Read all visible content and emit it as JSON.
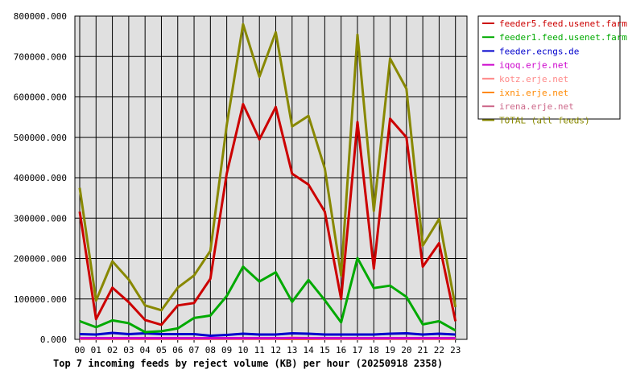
{
  "chart_data": {
    "type": "line",
    "title": "Top 7 incoming feeds by reject volume (KB) per hour (20250918 2358)",
    "categories": [
      "00",
      "01",
      "02",
      "03",
      "04",
      "05",
      "06",
      "07",
      "08",
      "09",
      "10",
      "11",
      "12",
      "13",
      "14",
      "15",
      "16",
      "17",
      "18",
      "19",
      "20",
      "21",
      "22",
      "23"
    ],
    "yticks": [
      "0.000",
      "100000.000",
      "200000.000",
      "300000.000",
      "400000.000",
      "500000.000",
      "600000.000",
      "700000.000",
      "800000.000"
    ],
    "ylim": [
      0,
      800000
    ],
    "grid": true,
    "legend_position": "top-right",
    "series": [
      {
        "name": "feeder5.feed.usenet.farm",
        "color": "#cc0000",
        "values": [
          316000,
          50000,
          128000,
          92000,
          48000,
          36000,
          84000,
          90000,
          150000,
          410000,
          582000,
          495000,
          575000,
          410000,
          383000,
          316000,
          100000,
          538000,
          175000,
          546000,
          500000,
          180000,
          238000,
          45000
        ]
      },
      {
        "name": "feeder1.feed.usenet.farm",
        "color": "#00aa00",
        "values": [
          45000,
          30000,
          47000,
          40000,
          18000,
          20000,
          27000,
          53000,
          59000,
          107000,
          180000,
          143000,
          166000,
          93000,
          147000,
          97000,
          42000,
          201000,
          127000,
          133000,
          105000,
          37000,
          45000,
          22000
        ]
      },
      {
        "name": "feeder.ecngs.de",
        "color": "#0000cc",
        "values": [
          13000,
          12000,
          16000,
          13000,
          15000,
          13000,
          13000,
          13000,
          9000,
          11000,
          14000,
          12000,
          12000,
          15000,
          14000,
          12000,
          12000,
          12000,
          12000,
          14000,
          15000,
          12000,
          14000,
          12000
        ]
      },
      {
        "name": "iqoq.erje.net",
        "color": "#cc00cc",
        "values": [
          3000,
          3000,
          3000,
          3000,
          3000,
          3000,
          3000,
          3000,
          3000,
          3000,
          3000,
          3000,
          3000,
          3000,
          3000,
          3000,
          3000,
          3000,
          3000,
          3000,
          3000,
          3000,
          3000,
          3000
        ]
      },
      {
        "name": "kotz.erje.net",
        "color": "#ff8888",
        "values": [
          2000,
          2000,
          2000,
          2000,
          2000,
          2000,
          2000,
          2000,
          2000,
          2000,
          2000,
          2000,
          2000,
          4000,
          3000,
          2000,
          2000,
          2000,
          2000,
          2000,
          2000,
          2000,
          2000,
          2000
        ]
      },
      {
        "name": "ixni.erje.net",
        "color": "#ff8800",
        "values": [
          1500,
          1500,
          1500,
          1500,
          1500,
          1500,
          1500,
          1500,
          1500,
          1500,
          1500,
          1500,
          1500,
          1500,
          1500,
          1500,
          1500,
          1500,
          1500,
          1500,
          1500,
          1500,
          1500,
          1500
        ]
      },
      {
        "name": "irena.erje.net",
        "color": "#cc6688",
        "values": [
          1000,
          1000,
          1000,
          1000,
          1000,
          1000,
          1000,
          1000,
          1000,
          1000,
          1000,
          1000,
          1000,
          1000,
          1000,
          1000,
          1000,
          1000,
          1000,
          1000,
          1000,
          1000,
          1000,
          1000
        ]
      },
      {
        "name": "TOTAL (all feeds)",
        "color": "#888800",
        "values": [
          375000,
          96000,
          193000,
          148000,
          84000,
          72000,
          128000,
          158000,
          219000,
          530000,
          780000,
          650000,
          760000,
          527000,
          553000,
          423000,
          158000,
          754000,
          318000,
          695000,
          620000,
          232000,
          298000,
          80000
        ]
      }
    ]
  }
}
